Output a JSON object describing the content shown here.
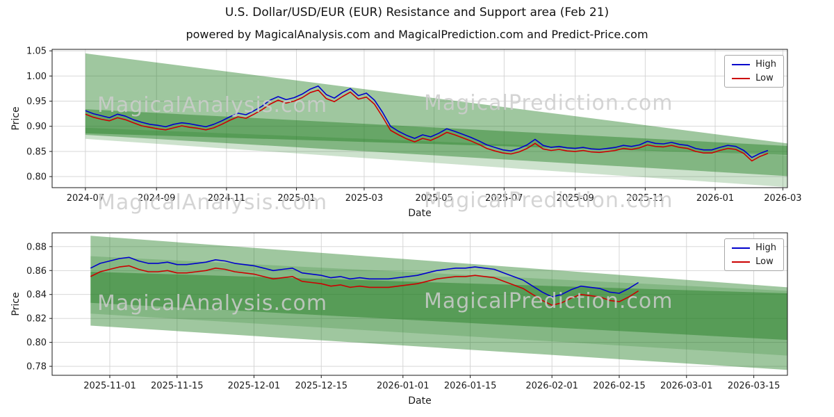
{
  "page": {
    "title": "U.S. Dollar/USD/EUR (EUR) Resistance and Support area (Feb 21)",
    "subtitle": "powered by MagicalAnalysis.com and MagicalPrediction.com and Predict-Price.com"
  },
  "watermarks": {
    "left": "MagicalAnalysis.com",
    "right": "MagicalPrediction.com"
  },
  "colors": {
    "high": "#0000cc",
    "low": "#cc0000",
    "band": "#1a7a1a",
    "grid": "#d2d2d2",
    "axis": "#1a1a1a"
  },
  "chart_data": [
    {
      "type": "line",
      "name": "top-chart",
      "title": "",
      "xlabel": "Date",
      "ylabel": "Price",
      "xlim": [
        "2024-06-02",
        "2026-03-05"
      ],
      "ylim": [
        0.778,
        1.053
      ],
      "yticks": [
        0.8,
        0.85,
        0.9,
        0.95,
        1.0,
        1.05
      ],
      "xticks": [
        {
          "d": "2024-07-01",
          "label": "2024-07"
        },
        {
          "d": "2024-09-01",
          "label": "2024-09"
        },
        {
          "d": "2024-11-01",
          "label": "2024-11"
        },
        {
          "d": "2025-01-01",
          "label": "2025-01"
        },
        {
          "d": "2025-03-01",
          "label": "2025-03"
        },
        {
          "d": "2025-05-01",
          "label": "2025-05"
        },
        {
          "d": "2025-07-01",
          "label": "2025-07"
        },
        {
          "d": "2025-09-01",
          "label": "2025-09"
        },
        {
          "d": "2025-11-01",
          "label": "2025-11"
        },
        {
          "d": "2026-01-01",
          "label": "2026-01"
        },
        {
          "d": "2026-03-01",
          "label": "2026-03"
        }
      ],
      "grid": true,
      "legend_position": "upper right",
      "dates": [
        "2024-07-01",
        "2024-07-08",
        "2024-07-15",
        "2024-07-22",
        "2024-07-29",
        "2024-08-05",
        "2024-08-12",
        "2024-08-19",
        "2024-08-26",
        "2024-09-02",
        "2024-09-09",
        "2024-09-16",
        "2024-09-23",
        "2024-09-30",
        "2024-10-07",
        "2024-10-14",
        "2024-10-21",
        "2024-10-28",
        "2024-11-04",
        "2024-11-11",
        "2024-11-18",
        "2024-11-25",
        "2024-12-02",
        "2024-12-09",
        "2024-12-16",
        "2024-12-23",
        "2024-12-30",
        "2025-01-06",
        "2025-01-13",
        "2025-01-20",
        "2025-01-27",
        "2025-02-03",
        "2025-02-10",
        "2025-02-17",
        "2025-02-24",
        "2025-03-03",
        "2025-03-10",
        "2025-03-17",
        "2025-03-24",
        "2025-03-31",
        "2025-04-07",
        "2025-04-14",
        "2025-04-21",
        "2025-04-28",
        "2025-05-05",
        "2025-05-12",
        "2025-05-19",
        "2025-05-26",
        "2025-06-02",
        "2025-06-09",
        "2025-06-16",
        "2025-06-23",
        "2025-06-30",
        "2025-07-07",
        "2025-07-14",
        "2025-07-21",
        "2025-07-28",
        "2025-08-04",
        "2025-08-11",
        "2025-08-18",
        "2025-08-25",
        "2025-09-01",
        "2025-09-08",
        "2025-09-15",
        "2025-09-22",
        "2025-09-29",
        "2025-10-06",
        "2025-10-13",
        "2025-10-20",
        "2025-10-27",
        "2025-11-03",
        "2025-11-10",
        "2025-11-17",
        "2025-11-24",
        "2025-12-01",
        "2025-12-08",
        "2025-12-15",
        "2025-12-22",
        "2025-12-29",
        "2026-01-05",
        "2026-01-12",
        "2026-01-19",
        "2026-01-26",
        "2026-02-02",
        "2026-02-09",
        "2026-02-16"
      ],
      "series": [
        {
          "name": "High",
          "color_key": "high",
          "y": [
            0.931,
            0.925,
            0.921,
            0.917,
            0.924,
            0.92,
            0.913,
            0.908,
            0.904,
            0.902,
            0.899,
            0.904,
            0.907,
            0.905,
            0.902,
            0.899,
            0.904,
            0.911,
            0.919,
            0.926,
            0.923,
            0.931,
            0.94,
            0.952,
            0.959,
            0.953,
            0.957,
            0.964,
            0.974,
            0.98,
            0.963,
            0.956,
            0.967,
            0.975,
            0.961,
            0.966,
            0.952,
            0.928,
            0.9,
            0.89,
            0.882,
            0.876,
            0.883,
            0.879,
            0.886,
            0.895,
            0.89,
            0.884,
            0.878,
            0.871,
            0.863,
            0.858,
            0.853,
            0.851,
            0.856,
            0.863,
            0.874,
            0.862,
            0.858,
            0.86,
            0.857,
            0.856,
            0.858,
            0.855,
            0.854,
            0.856,
            0.858,
            0.862,
            0.86,
            0.863,
            0.87,
            0.866,
            0.865,
            0.868,
            0.864,
            0.862,
            0.856,
            0.853,
            0.853,
            0.858,
            0.862,
            0.86,
            0.852,
            0.838,
            0.846,
            0.852
          ]
        },
        {
          "name": "Low",
          "color_key": "low",
          "y": [
            0.924,
            0.918,
            0.914,
            0.911,
            0.917,
            0.913,
            0.907,
            0.901,
            0.898,
            0.895,
            0.893,
            0.897,
            0.901,
            0.898,
            0.896,
            0.893,
            0.897,
            0.904,
            0.912,
            0.919,
            0.916,
            0.924,
            0.933,
            0.944,
            0.952,
            0.946,
            0.95,
            0.957,
            0.967,
            0.972,
            0.955,
            0.949,
            0.959,
            0.968,
            0.954,
            0.958,
            0.944,
            0.919,
            0.892,
            0.883,
            0.875,
            0.869,
            0.876,
            0.872,
            0.879,
            0.888,
            0.883,
            0.877,
            0.871,
            0.864,
            0.856,
            0.851,
            0.847,
            0.845,
            0.849,
            0.856,
            0.866,
            0.855,
            0.852,
            0.854,
            0.851,
            0.85,
            0.852,
            0.849,
            0.848,
            0.85,
            0.852,
            0.856,
            0.854,
            0.857,
            0.863,
            0.86,
            0.859,
            0.862,
            0.858,
            0.856,
            0.85,
            0.847,
            0.847,
            0.852,
            0.856,
            0.854,
            0.846,
            0.831,
            0.84,
            0.846
          ]
        }
      ],
      "bands": [
        {
          "x": [
            "2024-07-01",
            "2026-03-05"
          ],
          "top": [
            1.045,
            0.866
          ],
          "bottom": [
            0.886,
            0.843
          ],
          "opacity": 0.42
        },
        {
          "x": [
            "2024-07-01",
            "2026-03-05"
          ],
          "top": [
            0.934,
            0.861
          ],
          "bottom": [
            0.883,
            0.801
          ],
          "opacity": 0.42
        },
        {
          "x": [
            "2024-07-01",
            "2026-03-05"
          ],
          "top": [
            0.897,
            0.842
          ],
          "bottom": [
            0.875,
            0.779
          ],
          "opacity": 0.22
        }
      ]
    },
    {
      "type": "line",
      "name": "bottom-chart",
      "title": "",
      "xlabel": "Date",
      "ylabel": "Price",
      "xlim": [
        "2025-10-20",
        "2026-03-22"
      ],
      "ylim": [
        0.7725,
        0.8915
      ],
      "yticks": [
        0.78,
        0.8,
        0.82,
        0.84,
        0.86,
        0.88
      ],
      "xticks": [
        {
          "d": "2025-11-01",
          "label": "2025-11-01"
        },
        {
          "d": "2025-11-15",
          "label": "2025-11-15"
        },
        {
          "d": "2025-12-01",
          "label": "2025-12-01"
        },
        {
          "d": "2025-12-15",
          "label": "2025-12-15"
        },
        {
          "d": "2026-01-01",
          "label": "2026-01-01"
        },
        {
          "d": "2026-01-15",
          "label": "2026-01-15"
        },
        {
          "d": "2026-02-01",
          "label": "2026-02-01"
        },
        {
          "d": "2026-02-15",
          "label": "2026-02-15"
        },
        {
          "d": "2026-03-01",
          "label": "2026-03-01"
        },
        {
          "d": "2026-03-15",
          "label": "2026-03-15"
        }
      ],
      "grid": true,
      "legend_position": "upper right",
      "dates": [
        "2025-10-28",
        "2025-10-30",
        "2025-11-01",
        "2025-11-03",
        "2025-11-05",
        "2025-11-07",
        "2025-11-09",
        "2025-11-11",
        "2025-11-13",
        "2025-11-15",
        "2025-11-17",
        "2025-11-19",
        "2025-11-21",
        "2025-11-23",
        "2025-11-25",
        "2025-11-27",
        "2025-11-29",
        "2025-12-01",
        "2025-12-03",
        "2025-12-05",
        "2025-12-07",
        "2025-12-09",
        "2025-12-11",
        "2025-12-13",
        "2025-12-15",
        "2025-12-17",
        "2025-12-19",
        "2025-12-21",
        "2025-12-23",
        "2025-12-25",
        "2025-12-27",
        "2025-12-29",
        "2025-12-31",
        "2026-01-02",
        "2026-01-04",
        "2026-01-06",
        "2026-01-08",
        "2026-01-10",
        "2026-01-12",
        "2026-01-14",
        "2026-01-16",
        "2026-01-18",
        "2026-01-20",
        "2026-01-22",
        "2026-01-24",
        "2026-01-26",
        "2026-01-28",
        "2026-01-30",
        "2026-02-01",
        "2026-02-03",
        "2026-02-05",
        "2026-02-07",
        "2026-02-09",
        "2026-02-11",
        "2026-02-13",
        "2026-02-15",
        "2026-02-17",
        "2026-02-19"
      ],
      "series": [
        {
          "name": "High",
          "color_key": "high",
          "y": [
            0.862,
            0.866,
            0.868,
            0.87,
            0.871,
            0.868,
            0.866,
            0.866,
            0.867,
            0.865,
            0.865,
            0.866,
            0.867,
            0.869,
            0.868,
            0.866,
            0.865,
            0.864,
            0.862,
            0.86,
            0.861,
            0.862,
            0.858,
            0.857,
            0.856,
            0.854,
            0.855,
            0.853,
            0.854,
            0.853,
            0.853,
            0.853,
            0.854,
            0.855,
            0.856,
            0.858,
            0.86,
            0.861,
            0.862,
            0.862,
            0.863,
            0.862,
            0.861,
            0.858,
            0.855,
            0.852,
            0.847,
            0.842,
            0.838,
            0.84,
            0.844,
            0.847,
            0.846,
            0.845,
            0.842,
            0.841,
            0.845,
            0.85
          ]
        },
        {
          "name": "Low",
          "color_key": "low",
          "y": [
            0.855,
            0.859,
            0.861,
            0.863,
            0.864,
            0.861,
            0.859,
            0.859,
            0.86,
            0.858,
            0.858,
            0.859,
            0.86,
            0.862,
            0.861,
            0.859,
            0.858,
            0.857,
            0.855,
            0.853,
            0.854,
            0.855,
            0.851,
            0.85,
            0.849,
            0.847,
            0.848,
            0.846,
            0.847,
            0.846,
            0.846,
            0.846,
            0.847,
            0.848,
            0.849,
            0.851,
            0.853,
            0.854,
            0.855,
            0.855,
            0.856,
            0.855,
            0.854,
            0.851,
            0.848,
            0.845,
            0.84,
            0.835,
            0.831,
            0.833,
            0.837,
            0.84,
            0.839,
            0.838,
            0.835,
            0.834,
            0.838,
            0.843
          ]
        }
      ],
      "bands": [
        {
          "x": [
            "2025-10-28",
            "2026-03-22"
          ],
          "top": [
            0.889,
            0.846
          ],
          "bottom": [
            0.833,
            0.802
          ],
          "opacity": 0.42
        },
        {
          "x": [
            "2025-10-28",
            "2026-03-22"
          ],
          "top": [
            0.859,
            0.841
          ],
          "bottom": [
            0.814,
            0.777
          ],
          "opacity": 0.42
        },
        {
          "x": [
            "2025-10-28",
            "2026-03-22"
          ],
          "top": [
            0.872,
            0.843
          ],
          "bottom": [
            0.824,
            0.789
          ],
          "opacity": 0.2
        }
      ]
    }
  ]
}
